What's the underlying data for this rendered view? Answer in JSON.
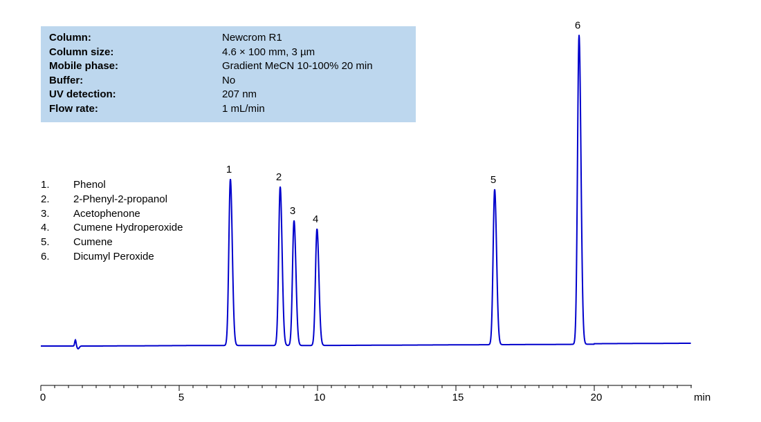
{
  "conditions": [
    {
      "label": "Column:",
      "value": "Newcrom R1"
    },
    {
      "label": "Column size:",
      "value": "4.6 × 100 mm, 3 µm"
    },
    {
      "label": "Mobile phase:",
      "value": "Gradient MeCN  10-100%  20 min"
    },
    {
      "label": "Buffer:",
      "value": "No"
    },
    {
      "label": "UV detection:",
      "value": "207 nm"
    },
    {
      "label": "Flow rate:",
      "value": "1 mL/min"
    }
  ],
  "legend": [
    {
      "num": "1.",
      "name": "Phenol"
    },
    {
      "num": "2.",
      "name": "2-Phenyl-2-propanol"
    },
    {
      "num": "3.",
      "name": "Acetophenone"
    },
    {
      "num": "4.",
      "name": "Cumene Hydroperoxide"
    },
    {
      "num": "5.",
      "name": "Cumene"
    },
    {
      "num": "6.",
      "name": "Dicumyl Peroxide"
    }
  ],
  "chart_data": {
    "type": "line",
    "xlabel": "min",
    "ylabel": "",
    "xlim": [
      0,
      23.5
    ],
    "xticks": [
      0,
      5,
      10,
      15,
      20
    ],
    "line_color": "#0000cc",
    "baseline": 0,
    "peaks": [
      {
        "label": "1",
        "x": 6.85,
        "height": 241
      },
      {
        "label": "2",
        "x": 8.65,
        "height": 230
      },
      {
        "label": "3",
        "x": 9.15,
        "height": 181
      },
      {
        "label": "4",
        "x": 9.98,
        "height": 169
      },
      {
        "label": "5",
        "x": 16.4,
        "height": 225
      },
      {
        "label": "6",
        "x": 19.45,
        "height": 448
      }
    ]
  }
}
